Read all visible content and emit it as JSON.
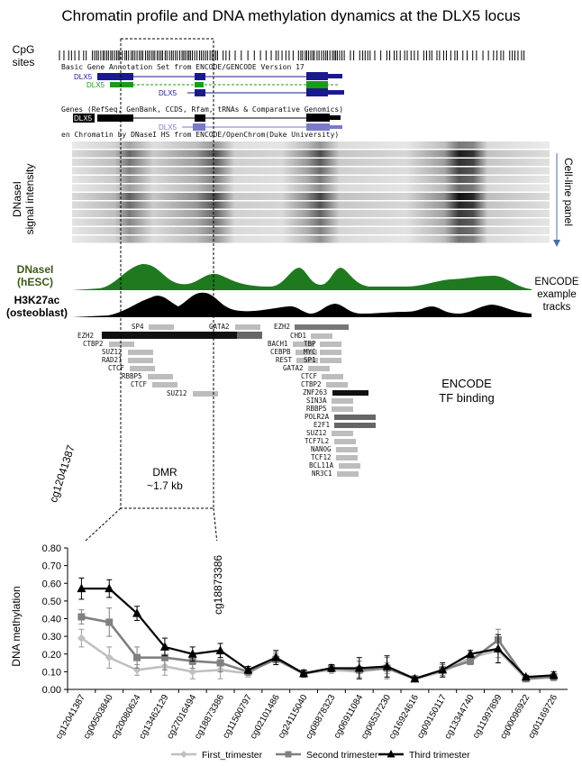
{
  "title": "Chromatin profile and DNA methylation dynamics at the DLX5 locus",
  "labels": {
    "cpg": "CpG\nsites",
    "dnase_signal": "DNaseI\nsignal intensity",
    "cell_line_panel": "Cell-line panel",
    "dnase_hesc": "DNaseI\n(hESC)",
    "h3k27ac": "H3K27ac\n(osteoblast)",
    "encode_example": "ENCODE\nexample\ntracks",
    "encode_tf": "ENCODE\nTF binding",
    "dmr": "DMR\n~1.7 kb",
    "probe_left": "cg12041387",
    "probe_right": "cg18873386"
  },
  "genome_browser": {
    "gencode_title": "Basic Gene Annotation Set from ENCODE/GENCODE Version 17",
    "refseq_title": "Genes (RefSeq, GenBank, CCDS, Rfam, tRNAs & Comparative Genomics)",
    "dnase_title": "en Chromatin by DNaseI HS from ENCODE/OpenChrom(Duke University)",
    "gene_names": [
      "DLX5",
      "DLX5",
      "DLX5",
      "DLX5",
      "DLX5"
    ],
    "colors": {
      "gencode_blue": "#1a1a8c",
      "gencode_green": "#1a9c1a",
      "refseq_black": "#000000",
      "refseq_light": "#7a7acc",
      "dnase_green": "#1f7a1f"
    },
    "tf_left": [
      "SP4",
      "EZH2",
      "CTBP2",
      "SUZ12",
      "RAD21",
      "CTCF",
      "RBBP5",
      "CTCF",
      "SUZ12",
      "GATA2"
    ],
    "tf_right": [
      "EZH2",
      "CHD1",
      "BACH1",
      "TBP",
      "CEBPB",
      "MYC",
      "REST",
      "SP1",
      "GATA2",
      "CTCF",
      "CTBP2",
      "ZNF263",
      "SIN3A",
      "RBBP5",
      "POLR2A",
      "E2F1",
      "SUZ12",
      "TCF7L2",
      "NANOG",
      "TCF12",
      "BCL11A",
      "NR3C1"
    ]
  },
  "chart_data": {
    "type": "line",
    "title": "",
    "xlabel": "",
    "ylabel": "DNA methylation",
    "ylim": [
      0,
      0.8
    ],
    "yticks": [
      "0.00",
      "0.10",
      "0.20",
      "0.30",
      "0.40",
      "0.50",
      "0.60",
      "0.70",
      "0.80"
    ],
    "legend_position": "bottom",
    "categories": [
      "cg12041387",
      "cg00503840",
      "cg20080624",
      "cg13462129",
      "cg27016494",
      "cg18873386",
      "cg11500797",
      "cg02101486",
      "cg24115040",
      "cg08878323",
      "cg06911084",
      "cg06537230",
      "cg16924616",
      "cg09150117",
      "cg13344740",
      "cg11997899",
      "cg00096922",
      "cg01169726"
    ],
    "series": [
      {
        "name": "First_trimester",
        "color": "#c0c0c0",
        "marker": "diamond",
        "values": [
          0.29,
          0.18,
          0.11,
          0.13,
          0.1,
          0.11,
          0.09,
          0.18,
          0.09,
          0.11,
          0.1,
          0.12,
          0.06,
          0.1,
          0.18,
          0.22,
          0.06,
          0.07
        ],
        "errors": [
          0.05,
          0.06,
          0.03,
          0.05,
          0.04,
          0.05,
          0.02,
          0.03,
          0.02,
          0.02,
          0.03,
          0.03,
          0.01,
          0.03,
          0.02,
          0.04,
          0.01,
          0.02
        ]
      },
      {
        "name": "Second trimester",
        "color": "#808080",
        "marker": "square",
        "values": [
          0.41,
          0.38,
          0.18,
          0.18,
          0.16,
          0.15,
          0.1,
          0.17,
          0.09,
          0.12,
          0.11,
          0.12,
          0.06,
          0.11,
          0.16,
          0.28,
          0.06,
          0.07
        ],
        "errors": [
          0.04,
          0.08,
          0.06,
          0.07,
          0.04,
          0.05,
          0.02,
          0.03,
          0.02,
          0.02,
          0.05,
          0.06,
          0.01,
          0.03,
          0.02,
          0.06,
          0.01,
          0.02
        ]
      },
      {
        "name": "Third trimester",
        "color": "#000000",
        "marker": "triangle",
        "values": [
          0.57,
          0.57,
          0.43,
          0.24,
          0.2,
          0.22,
          0.11,
          0.18,
          0.09,
          0.12,
          0.12,
          0.13,
          0.06,
          0.11,
          0.2,
          0.23,
          0.07,
          0.08
        ],
        "errors": [
          0.06,
          0.05,
          0.04,
          0.05,
          0.04,
          0.04,
          0.02,
          0.04,
          0.02,
          0.02,
          0.06,
          0.06,
          0.01,
          0.04,
          0.02,
          0.08,
          0.01,
          0.02
        ]
      }
    ]
  }
}
